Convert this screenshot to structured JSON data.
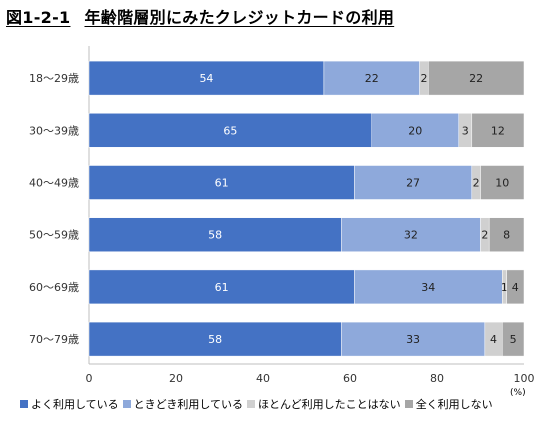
{
  "title": {
    "number": "図1-2-1",
    "text": "年齢階層別にみたクレジットカードの利用"
  },
  "chart_data": {
    "type": "bar",
    "orientation": "horizontal",
    "stacked": true,
    "categories": [
      "18～29歳",
      "30～39歳",
      "40～49歳",
      "50～59歳",
      "60～69歳",
      "70～79歳"
    ],
    "series": [
      {
        "name": "よく利用している",
        "color": "#4472C4",
        "values": [
          54,
          65,
          61,
          58,
          61,
          58
        ]
      },
      {
        "name": "ときどき利用している",
        "color": "#8EA9DB",
        "values": [
          22,
          20,
          27,
          32,
          34,
          33
        ]
      },
      {
        "name": "ほとんど利用したことはない",
        "color": "#D0D0D0",
        "values": [
          2,
          3,
          2,
          2,
          1,
          4
        ]
      },
      {
        "name": "全く利用しない",
        "color": "#A6A6A6",
        "values": [
          22,
          12,
          10,
          8,
          4,
          5
        ]
      }
    ],
    "xlim": [
      0,
      100
    ],
    "xticks": [
      0,
      20,
      40,
      60,
      80,
      100
    ],
    "unit": "(%)",
    "grid": false,
    "legend_position": "bottom"
  }
}
